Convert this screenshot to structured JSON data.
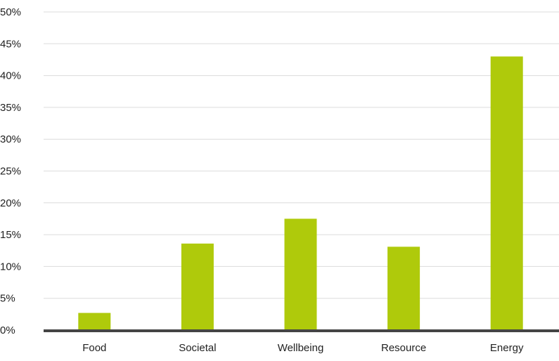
{
  "chart_data": {
    "type": "bar",
    "categories": [
      "Food",
      "Societal",
      "Wellbeing",
      "Resource",
      "Energy"
    ],
    "values": [
      2.7,
      13.6,
      17.5,
      13.1,
      43.0
    ],
    "title": "",
    "xlabel": "",
    "ylabel": "",
    "ylim": [
      0,
      50
    ],
    "y_ticks": [
      0,
      5,
      10,
      15,
      20,
      25,
      30,
      35,
      40,
      45,
      50
    ],
    "y_tick_labels": [
      "0%",
      "5%",
      "10%",
      "15%",
      "20%",
      "25%",
      "30%",
      "35%",
      "40%",
      "45%",
      "50%"
    ],
    "grid": true,
    "legend": "none",
    "colors": {
      "bar": "#afca0b",
      "grid": "#dcdcdc",
      "baseline": "#444444",
      "text": "#222222"
    }
  }
}
